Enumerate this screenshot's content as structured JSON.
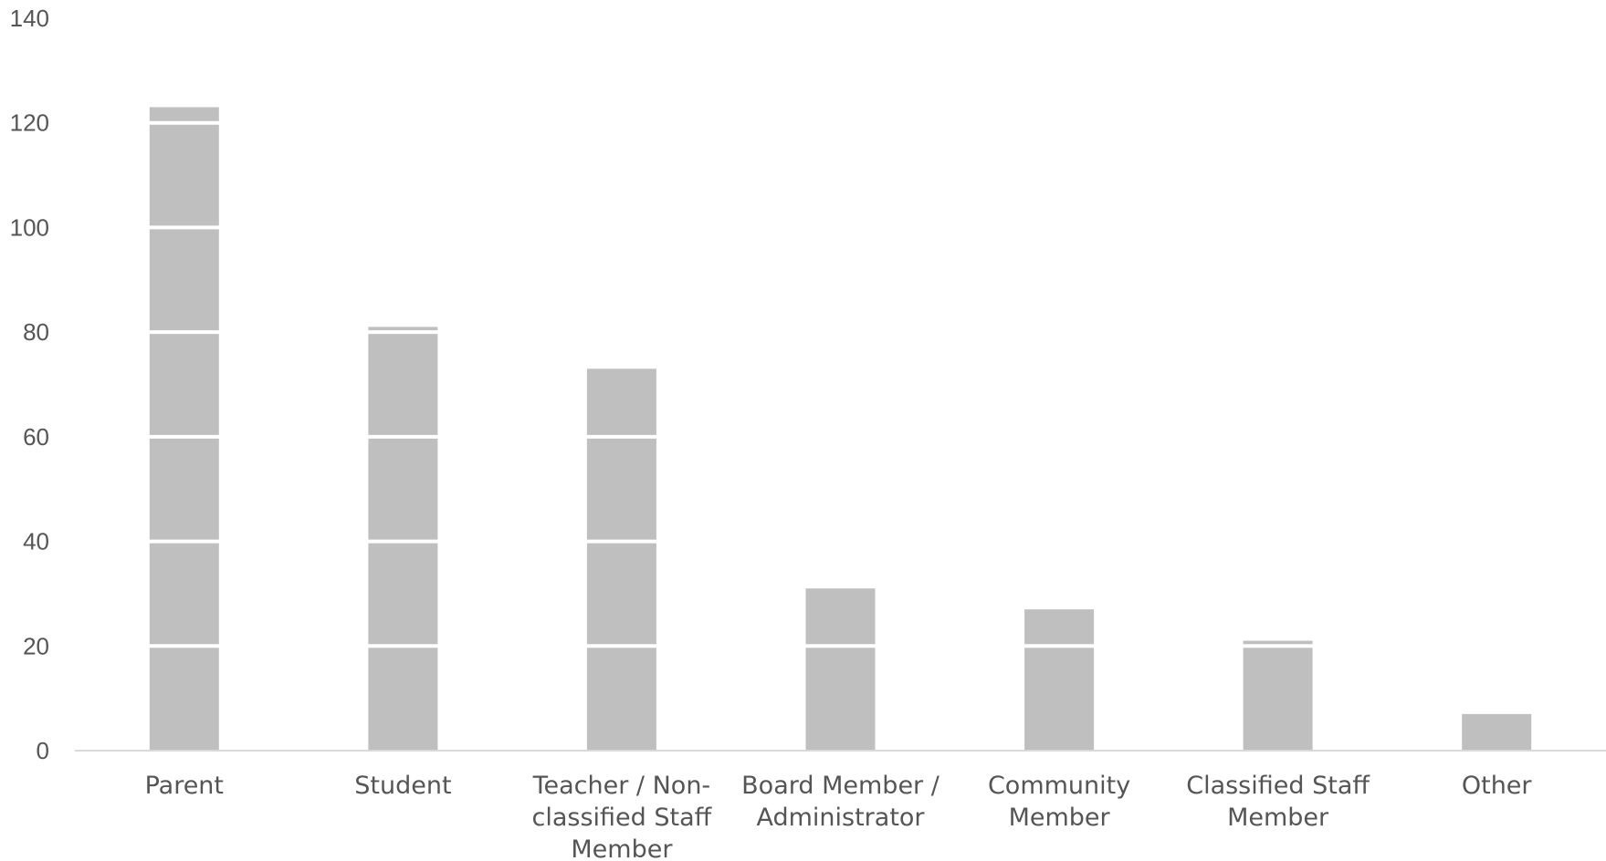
{
  "chart_data": {
    "type": "bar",
    "title": "",
    "xlabel": "",
    "ylabel": "",
    "categories": [
      [
        "Parent"
      ],
      [
        "Student"
      ],
      [
        "Teacher / Non-",
        "classified Staff",
        "Member"
      ],
      [
        "Board Member /",
        "Administrator"
      ],
      [
        "Community",
        "Member"
      ],
      [
        "Classified Staff",
        "Member"
      ],
      [
        "Other"
      ]
    ],
    "values": [
      123,
      81,
      73,
      31,
      27,
      21,
      7
    ],
    "ylim": [
      0,
      140
    ],
    "yticks": [
      0,
      20,
      40,
      60,
      80,
      100,
      120,
      140
    ],
    "grid": true,
    "gridlines_in_front_of_bars": true,
    "legend": "none",
    "colors": {
      "bar": "#bfbfbf",
      "grid": "#ffffff",
      "axis": "#d9d9d9",
      "text": "#555555"
    }
  }
}
